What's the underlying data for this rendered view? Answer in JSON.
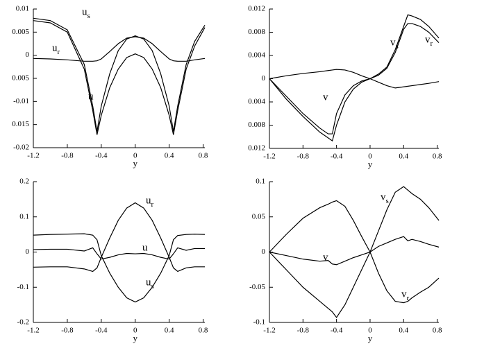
{
  "chart_data": [
    {
      "type": "line",
      "xlabel": "y",
      "x": [
        -1.2,
        -1.0,
        -0.8,
        -0.6,
        -0.5,
        -0.45,
        -0.4,
        -0.3,
        -0.2,
        -0.1,
        0,
        0.1,
        0.2,
        0.3,
        0.4,
        0.45,
        0.5,
        0.6,
        0.7,
        0.82
      ],
      "xlim": [
        -1.2,
        0.82
      ],
      "xticks": [
        -1.2,
        -0.8,
        -0.4,
        0,
        0.4,
        0.8
      ],
      "ylim": [
        -0.02,
        0.01
      ],
      "yticks": [
        0.01,
        0.005,
        0,
        {
          "value": -0.005,
          "label": "0.005"
        },
        -0.01,
        {
          "value": -0.015,
          "label": "0.015"
        },
        -0.02
      ],
      "series": [
        {
          "name": "us",
          "color": "#000000",
          "values": [
            0.008,
            0.0075,
            0.0055,
            -0.002,
            -0.011,
            -0.0165,
            -0.011,
            -0.004,
            0.001,
            0.0035,
            0.0042,
            0.0035,
            0.001,
            -0.004,
            -0.011,
            -0.0165,
            -0.011,
            -0.002,
            0.003,
            0.0065
          ]
        },
        {
          "name": "ur",
          "color": "#000000",
          "values": [
            -0.0007,
            -0.0008,
            -0.001,
            -0.0013,
            -0.0013,
            -0.0012,
            -0.0008,
            0.0008,
            0.0025,
            0.0037,
            0.004,
            0.0037,
            0.0025,
            0.0008,
            -0.0008,
            -0.0012,
            -0.0013,
            -0.0013,
            -0.001,
            -0.0007
          ]
        },
        {
          "name": "u",
          "color": "#000000",
          "values": [
            0.0075,
            0.007,
            0.005,
            -0.003,
            -0.012,
            -0.0172,
            -0.013,
            -0.007,
            -0.003,
            -0.0005,
            0.0003,
            -0.0005,
            -0.003,
            -0.007,
            -0.013,
            -0.0172,
            -0.012,
            -0.003,
            0.002,
            0.006
          ]
        }
      ]
    },
    {
      "type": "line",
      "xlabel": "y",
      "x": [
        -1.2,
        -1.0,
        -0.8,
        -0.6,
        -0.5,
        -0.45,
        -0.4,
        -0.3,
        -0.2,
        -0.1,
        0,
        0.1,
        0.2,
        0.3,
        0.4,
        0.45,
        0.5,
        0.6,
        0.7,
        0.82
      ],
      "xlim": [
        -1.2,
        0.82
      ],
      "xticks": [
        -1.2,
        -0.8,
        -0.4,
        0,
        0.4,
        0.8
      ],
      "ylim": [
        -0.012,
        0.012
      ],
      "yticks": [
        0.012,
        0.008,
        0.004,
        0,
        {
          "value": -0.004,
          "label": "0.004"
        },
        {
          "value": -0.008,
          "label": "0.008"
        },
        {
          "value": -0.012,
          "label": "0.012"
        }
      ],
      "series": [
        {
          "name": "vs",
          "color": "#000000",
          "values": [
            0,
            -0.0035,
            -0.0065,
            -0.0092,
            -0.0102,
            -0.0107,
            -0.008,
            -0.004,
            -0.0018,
            -0.0006,
            0,
            0.0008,
            0.002,
            0.005,
            0.009,
            0.011,
            0.0108,
            0.0102,
            0.009,
            0.007
          ]
        },
        {
          "name": "vr",
          "color": "#000000",
          "values": [
            0,
            -0.003,
            -0.006,
            -0.0085,
            -0.0095,
            -0.0095,
            -0.006,
            -0.0028,
            -0.0012,
            -0.0004,
            0,
            0.0006,
            0.0018,
            0.0045,
            0.0085,
            0.0095,
            0.0095,
            0.009,
            0.008,
            0.0062
          ]
        },
        {
          "name": "v",
          "color": "#000000",
          "values": [
            0,
            0.0005,
            0.0009,
            0.0012,
            0.0014,
            0.0015,
            0.0016,
            0.0015,
            0.0011,
            0.0005,
            0,
            -0.0006,
            -0.0012,
            -0.0016,
            -0.0014,
            -0.0013,
            -0.0012,
            -0.001,
            -0.0008,
            -0.0005
          ]
        }
      ]
    },
    {
      "type": "line",
      "xlabel": "y",
      "x": [
        -1.2,
        -1.0,
        -0.8,
        -0.6,
        -0.5,
        -0.45,
        -0.4,
        -0.3,
        -0.2,
        -0.1,
        0,
        0.1,
        0.2,
        0.3,
        0.4,
        0.45,
        0.5,
        0.6,
        0.7,
        0.82
      ],
      "xlim": [
        -1.2,
        0.82
      ],
      "xticks": [
        -1.2,
        -0.8,
        -0.4,
        0,
        0.4,
        0.8
      ],
      "ylim": [
        -0.2,
        0.2
      ],
      "yticks": [
        0.2,
        0.1,
        0,
        -0.1,
        -0.2
      ],
      "series": [
        {
          "name": "ur",
          "color": "#000000",
          "values": [
            -0.043,
            -0.042,
            -0.042,
            -0.048,
            -0.055,
            -0.045,
            -0.015,
            0.04,
            0.09,
            0.125,
            0.14,
            0.125,
            0.09,
            0.04,
            -0.015,
            -0.045,
            -0.055,
            -0.045,
            -0.042,
            -0.042
          ]
        },
        {
          "name": "u",
          "color": "#000000",
          "values": [
            0.007,
            0.008,
            0.008,
            0.003,
            0.012,
            -0.005,
            -0.02,
            -0.015,
            -0.008,
            -0.004,
            -0.005,
            -0.004,
            -0.008,
            -0.015,
            -0.02,
            -0.005,
            0.012,
            0.005,
            0.01,
            0.01
          ]
        },
        {
          "name": "us",
          "color": "#000000",
          "values": [
            0.048,
            0.05,
            0.051,
            0.052,
            0.048,
            0.035,
            -0.01,
            -0.06,
            -0.1,
            -0.13,
            -0.142,
            -0.13,
            -0.1,
            -0.06,
            -0.01,
            0.035,
            0.047,
            0.05,
            0.051,
            0.05
          ]
        }
      ]
    },
    {
      "type": "line",
      "xlabel": "y",
      "x": [
        -1.2,
        -1.0,
        -0.8,
        -0.6,
        -0.5,
        -0.45,
        -0.4,
        -0.3,
        -0.2,
        -0.1,
        0,
        0.1,
        0.2,
        0.3,
        0.4,
        0.45,
        0.5,
        0.6,
        0.7,
        0.82
      ],
      "xlim": [
        -1.2,
        0.82
      ],
      "xticks": [
        -1.2,
        -0.8,
        -0.4,
        0,
        0.4,
        0.8
      ],
      "ylim": [
        -0.1,
        0.1
      ],
      "yticks": [
        0.1,
        0.05,
        0,
        -0.05,
        -0.1
      ],
      "series": [
        {
          "name": "vs",
          "color": "#000000",
          "values": [
            0,
            0.025,
            0.048,
            0.063,
            0.068,
            0.071,
            0.073,
            0.065,
            0.045,
            0.022,
            0,
            0.03,
            0.06,
            0.085,
            0.093,
            0.088,
            0.083,
            0.075,
            0.063,
            0.045
          ]
        },
        {
          "name": "vr",
          "color": "#000000",
          "values": [
            0,
            -0.025,
            -0.05,
            -0.07,
            -0.08,
            -0.085,
            -0.093,
            -0.075,
            -0.05,
            -0.025,
            0,
            -0.03,
            -0.055,
            -0.07,
            -0.072,
            -0.07,
            -0.065,
            -0.057,
            -0.05,
            -0.037
          ]
        },
        {
          "name": "v",
          "color": "#000000",
          "values": [
            0,
            -0.005,
            -0.01,
            -0.013,
            -0.012,
            -0.017,
            -0.018,
            -0.013,
            -0.008,
            -0.004,
            0,
            0.008,
            0.013,
            0.018,
            0.022,
            0.016,
            0.018,
            0.015,
            0.011,
            0.007
          ]
        }
      ]
    }
  ]
}
